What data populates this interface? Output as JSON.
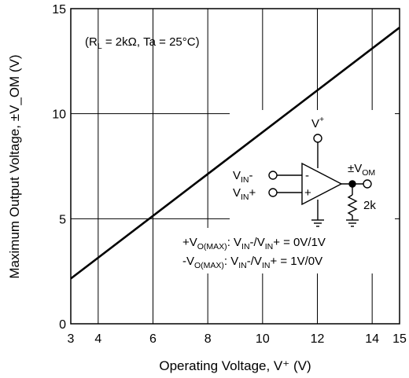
{
  "chart_data": {
    "type": "line",
    "xlabel": "Operating Voltage, V⁺ (V)",
    "ylabel": "Maximum Output Voltage, ±V_OM (V)",
    "xlim": [
      3,
      15
    ],
    "ylim": [
      0,
      15
    ],
    "xticks": [
      "3",
      "4",
      "6",
      "8",
      "10",
      "12",
      "14",
      "15"
    ],
    "yticks": [
      "0",
      "5",
      "10",
      "15"
    ],
    "xtick_values": [
      3,
      4,
      6,
      8,
      10,
      12,
      14,
      15
    ],
    "ytick_values": [
      0,
      5,
      10,
      15
    ],
    "grid": true,
    "series": [
      {
        "x": [
          3,
          15
        ],
        "y": [
          2.15,
          14.1
        ],
        "color": "#000000"
      }
    ],
    "conditions": {
      "open": "(R",
      "sub": "L",
      "rest": " = 2kΩ, Ta = 25°C)"
    }
  },
  "circuit": {
    "vplus": "V",
    "vplus_sup": "+",
    "vin_minus": "V",
    "vin_minus_sub": "IN",
    "vin_minus_suffix": "-",
    "vin_plus": "V",
    "vin_plus_sub": "IN",
    "vin_plus_suffix": "+",
    "minus_sign": "-",
    "plus_sign": "+",
    "vom": "±V",
    "vom_sub": "OM",
    "resistor": "2k"
  },
  "notes": {
    "line1": {
      "a": "+V",
      "a_sub": "O(MAX)",
      "b": ": V",
      "b_sub": "IN",
      "c": "-/V",
      "c_sub": "IN",
      "d": "+ = 0V/1V"
    },
    "line2": {
      "a": "-V",
      "a_sub": "O(MAX)",
      "b": ": V",
      "b_sub": "IN",
      "c": "-/V",
      "c_sub": "IN",
      "d": "+ = 1V/0V"
    }
  }
}
